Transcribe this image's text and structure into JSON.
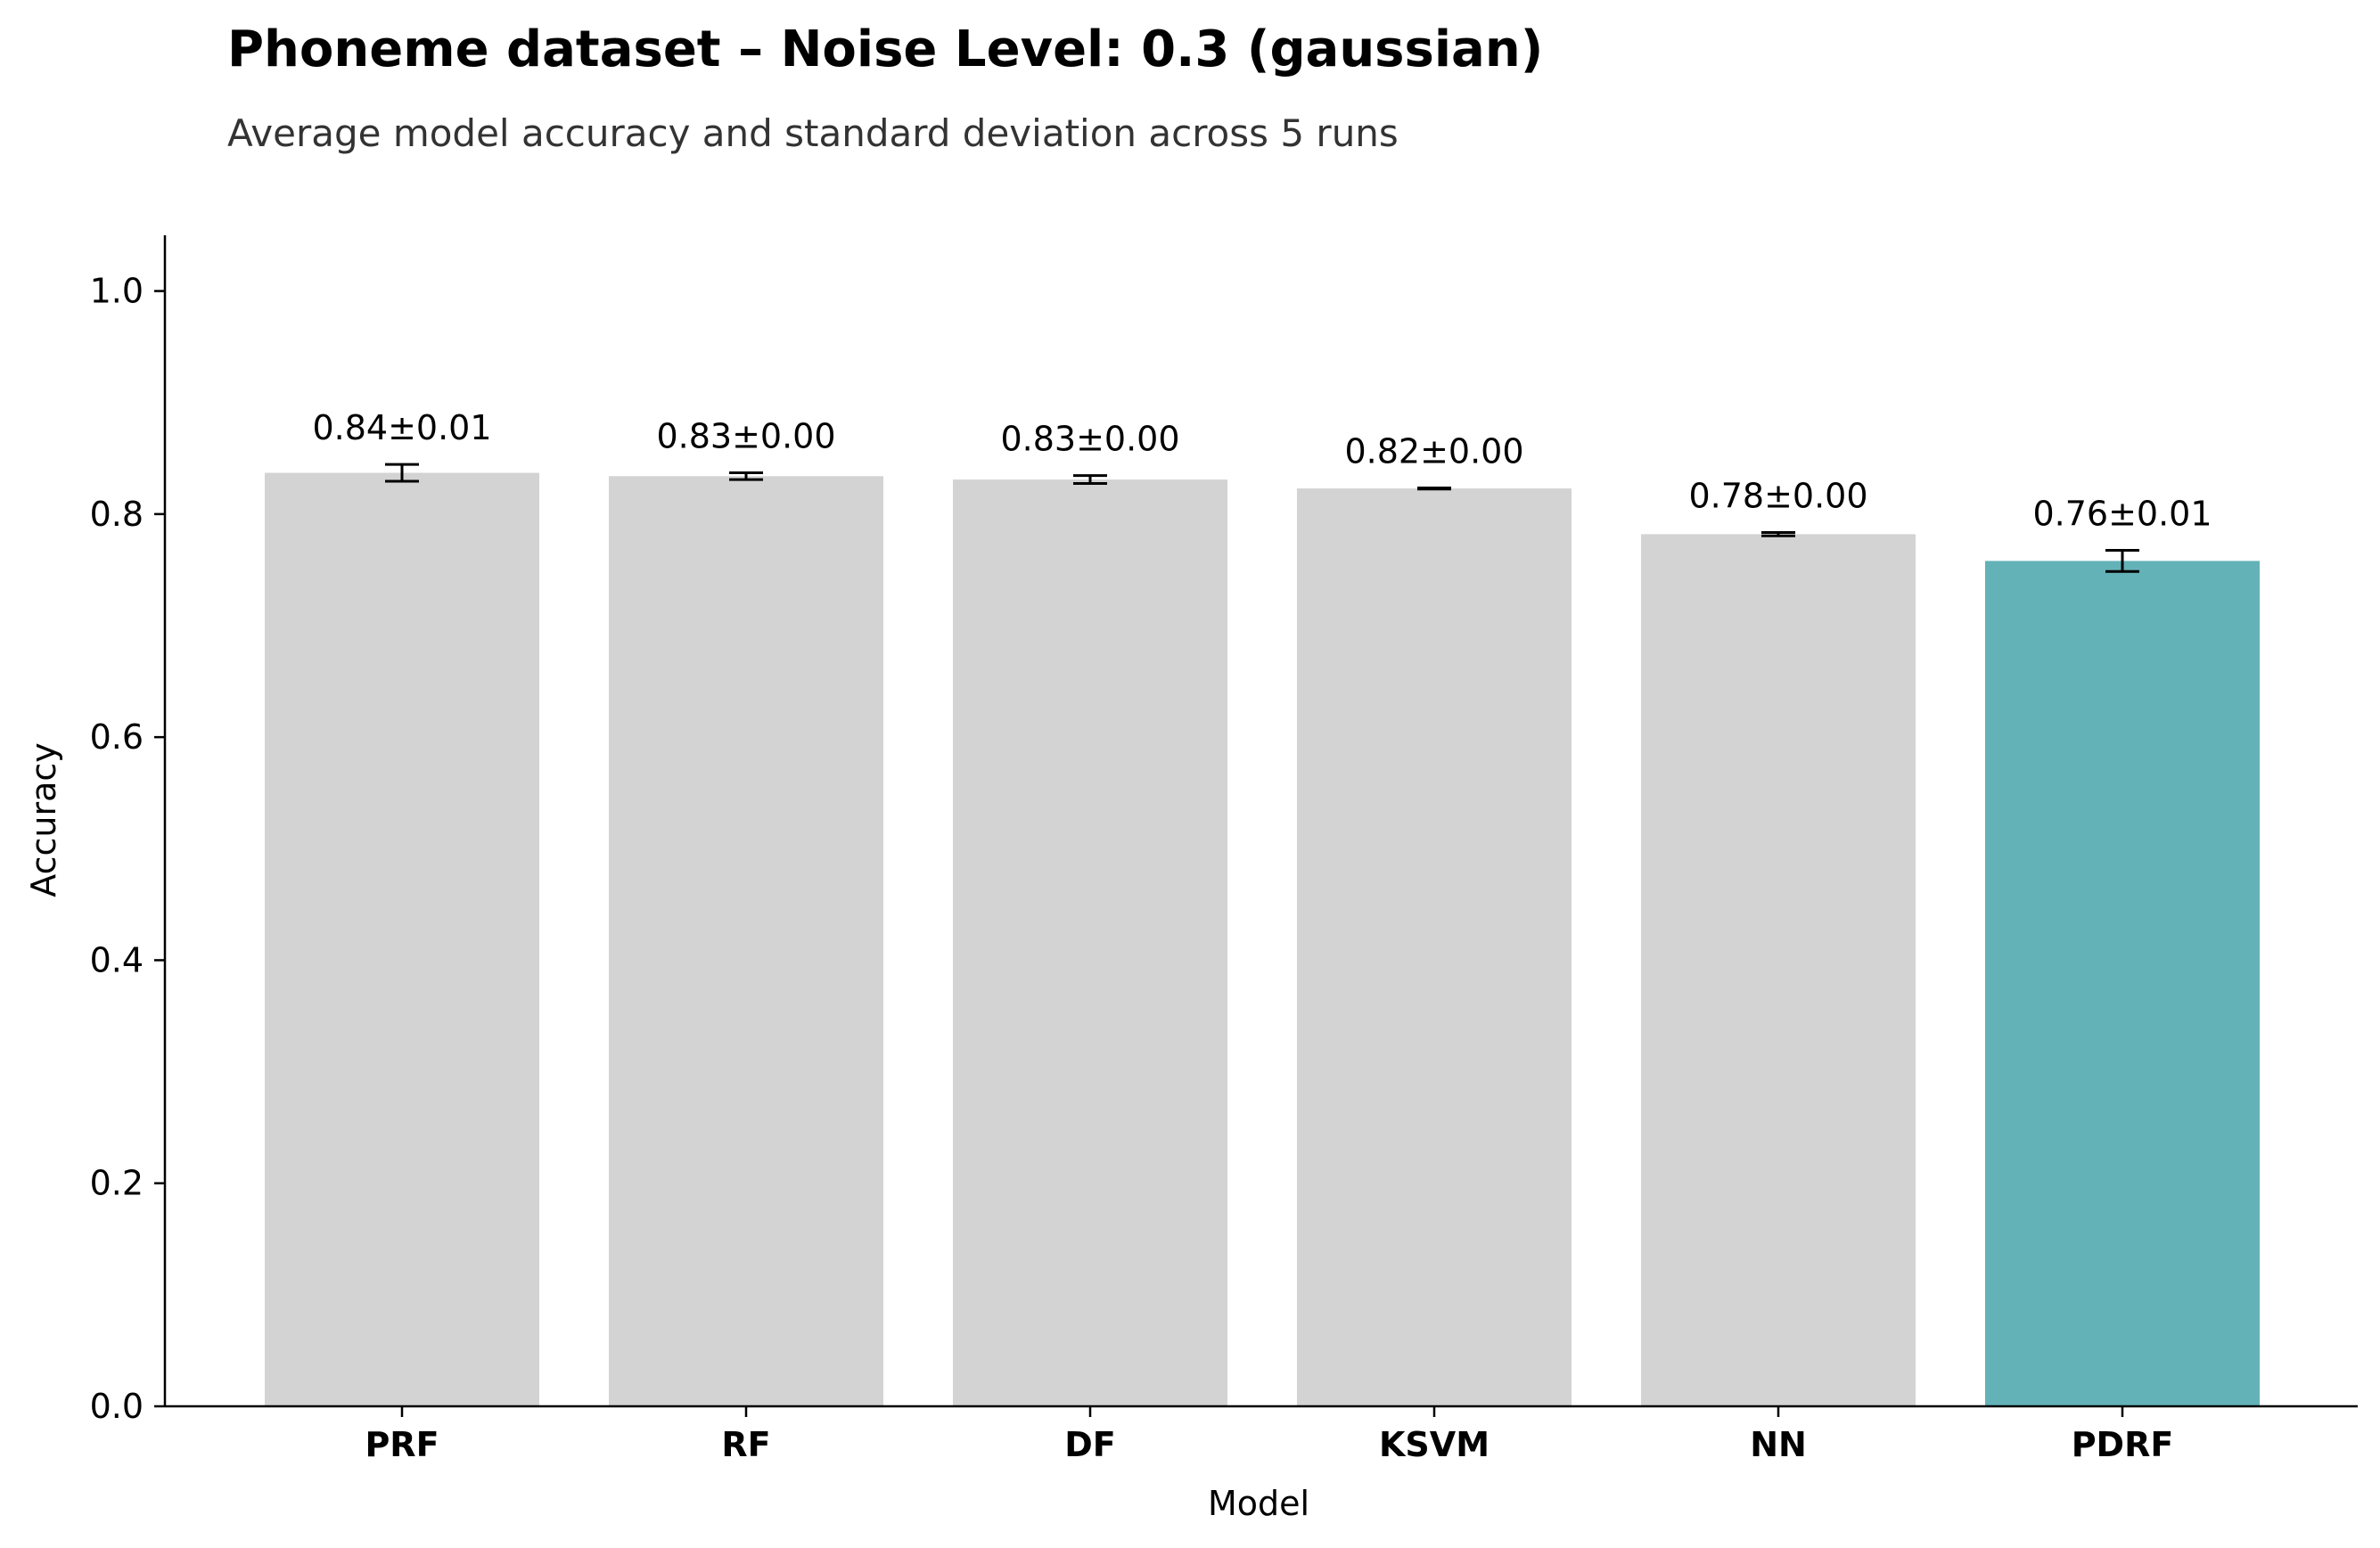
{
  "chart_data": {
    "type": "bar",
    "title": "Phoneme dataset – Noise Level: 0.3 (gaussian)",
    "subtitle": "Average model accuracy and standard deviation across 5 runs",
    "xlabel": "Model",
    "ylabel": "Accuracy",
    "ylim": [
      0,
      1.05
    ],
    "yticks": [
      0.0,
      0.2,
      0.4,
      0.6,
      0.8,
      1.0
    ],
    "ytick_labels": [
      "0.0",
      "0.2",
      "0.4",
      "0.6",
      "0.8",
      "1.0"
    ],
    "categories": [
      "PRF",
      "RF",
      "DF",
      "KSVM",
      "NN",
      "PDRF"
    ],
    "values": [
      0.837,
      0.834,
      0.831,
      0.823,
      0.782,
      0.758
    ],
    "errors": [
      0.0075,
      0.003,
      0.0035,
      0.0005,
      0.0015,
      0.0095
    ],
    "data_labels": [
      "0.84±0.01",
      "0.83±0.00",
      "0.83±0.00",
      "0.82±0.00",
      "0.78±0.00",
      "0.76±0.01"
    ],
    "bar_colors": [
      "#d3d3d3",
      "#d3d3d3",
      "#d3d3d3",
      "#d3d3d3",
      "#d3d3d3",
      "#63b2b8"
    ],
    "highlight_color": "#63b2b8",
    "default_color": "#d3d3d3",
    "grid": false,
    "legend": "none"
  }
}
